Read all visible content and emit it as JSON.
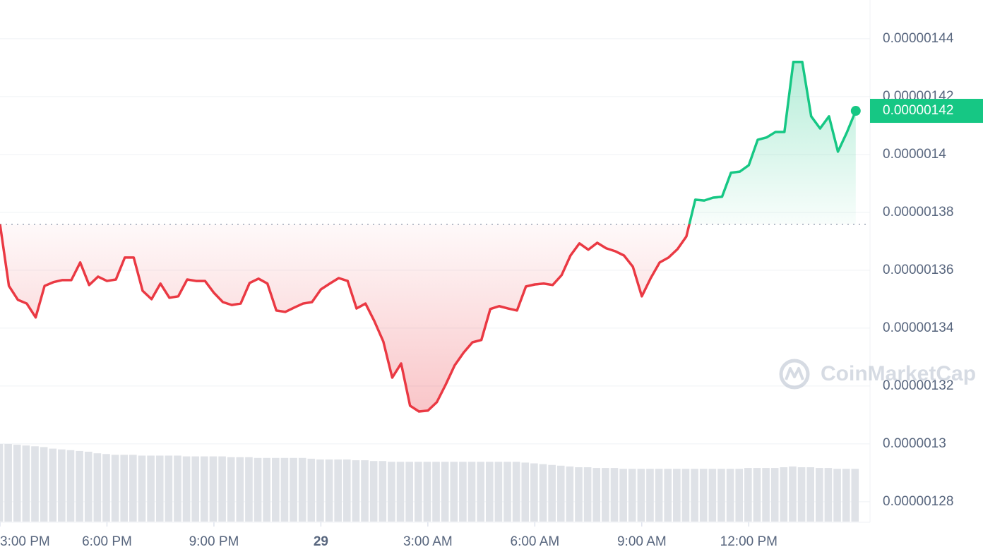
{
  "chart_data": {
    "type": "line",
    "watermark": "CoinMarketCap",
    "up_color": "#16c784",
    "down_color": "#ea3943",
    "volume_color": "#dfe2e7",
    "grid": true,
    "baseline": 1.3759e-06,
    "current_price": {
      "value": 1.4151e-06,
      "label": "0.00000142"
    },
    "ylim": [
      1.2729e-06,
      1.4534e-06
    ],
    "yticks": [
      1.28e-06,
      1.3e-06,
      1.32e-06,
      1.34e-06,
      1.36e-06,
      1.38e-06,
      1.4e-06,
      1.42e-06,
      1.44e-06
    ],
    "xlim": [
      0,
      24.4
    ],
    "xticks": [
      {
        "value": 0,
        "label": "3:00 PM"
      },
      {
        "value": 3,
        "label": "6:00 PM"
      },
      {
        "value": 6,
        "label": "9:00 PM"
      },
      {
        "value": 9,
        "label": "29",
        "bold": true
      },
      {
        "value": 12,
        "label": "3:00 AM"
      },
      {
        "value": 15,
        "label": "6:00 AM"
      },
      {
        "value": 18,
        "label": "9:00 AM"
      },
      {
        "value": 21,
        "label": "12:00 PM"
      }
    ],
    "x": [
      0,
      0.25,
      0.5,
      0.75,
      1,
      1.25,
      1.5,
      1.75,
      2,
      2.25,
      2.5,
      2.75,
      3,
      3.25,
      3.5,
      3.75,
      4,
      4.25,
      4.5,
      4.75,
      5,
      5.25,
      5.5,
      5.75,
      6,
      6.25,
      6.5,
      6.75,
      7,
      7.25,
      7.5,
      7.75,
      8,
      8.25,
      8.5,
      8.75,
      9,
      9.25,
      9.5,
      9.75,
      10,
      10.25,
      10.5,
      10.75,
      11,
      11.25,
      11.5,
      11.75,
      12,
      12.25,
      12.5,
      12.75,
      13,
      13.25,
      13.5,
      13.75,
      14,
      14.25,
      14.5,
      14.75,
      15,
      15.25,
      15.5,
      15.75,
      16,
      16.25,
      16.5,
      16.75,
      17,
      17.25,
      17.5,
      17.75,
      18,
      18.25,
      18.5,
      18.75,
      19,
      19.25,
      19.5,
      19.75,
      20,
      20.25,
      20.5,
      20.75,
      21,
      21.25,
      21.5,
      21.75,
      22,
      22.25,
      22.5,
      22.75,
      23,
      23.25,
      23.5,
      23.75,
      24
    ],
    "values": [
      1.3759e-06,
      1.3546e-06,
      1.3498e-06,
      1.3485e-06,
      1.3437e-06,
      1.3546e-06,
      1.3559e-06,
      1.3566e-06,
      1.3566e-06,
      1.3627e-06,
      1.3549e-06,
      1.3578e-06,
      1.3563e-06,
      1.3568e-06,
      1.3644e-06,
      1.3644e-06,
      1.3529e-06,
      1.35e-06,
      1.3554e-06,
      1.3505e-06,
      1.351e-06,
      1.3568e-06,
      1.3563e-06,
      1.3563e-06,
      1.3522e-06,
      1.349e-06,
      1.348e-06,
      1.3485e-06,
      1.3556e-06,
      1.3571e-06,
      1.3554e-06,
      1.3461e-06,
      1.3456e-06,
      1.3471e-06,
      1.3485e-06,
      1.349e-06,
      1.3534e-06,
      1.3554e-06,
      1.3573e-06,
      1.3563e-06,
      1.3468e-06,
      1.3485e-06,
      1.3424e-06,
      1.3354e-06,
      1.3229e-06,
      1.3278e-06,
      1.3132e-06,
      1.3112e-06,
      1.3115e-06,
      1.3144e-06,
      1.3205e-06,
      1.3271e-06,
      1.3315e-06,
      1.3351e-06,
      1.3359e-06,
      1.3466e-06,
      1.3476e-06,
      1.3468e-06,
      1.3461e-06,
      1.3544e-06,
      1.3551e-06,
      1.3554e-06,
      1.3549e-06,
      1.3583e-06,
      1.3651e-06,
      1.3693e-06,
      1.3671e-06,
      1.3695e-06,
      1.3676e-06,
      1.3666e-06,
      1.3651e-06,
      1.3612e-06,
      1.351e-06,
      1.3573e-06,
      1.3627e-06,
      1.3644e-06,
      1.3673e-06,
      1.3717e-06,
      1.3844e-06,
      1.3841e-06,
      1.3851e-06,
      1.3854e-06,
      1.3937e-06,
      1.3941e-06,
      1.3963e-06,
      1.4051e-06,
      1.4059e-06,
      1.4078e-06,
      1.4078e-06,
      1.432e-06,
      1.432e-06,
      1.4132e-06,
      1.409e-06,
      1.4132e-06,
      1.401e-06,
      1.4076e-06,
      1.4151e-06
    ],
    "volume_lim": [
      0,
      100
    ],
    "volume": [
      100,
      100,
      99,
      98,
      97,
      96,
      94,
      93,
      92,
      91,
      90,
      88,
      87,
      86,
      86,
      86,
      85,
      85,
      85,
      85,
      85,
      84,
      84,
      84,
      84,
      84,
      83,
      83,
      83,
      82,
      82,
      82,
      82,
      82,
      82,
      81,
      80,
      80,
      80,
      80,
      79,
      79,
      78,
      78,
      77,
      77,
      77,
      77,
      77,
      77,
      77,
      77,
      77,
      77,
      77,
      77,
      77,
      77,
      77,
      76,
      75,
      74,
      73,
      72,
      71,
      70,
      70,
      69,
      69,
      69,
      68,
      68,
      68,
      68,
      68,
      68,
      68,
      68,
      68,
      68,
      68,
      68,
      68,
      68,
      69,
      69,
      69,
      69,
      70,
      71,
      70,
      70,
      69,
      69,
      68,
      68,
      68
    ]
  }
}
